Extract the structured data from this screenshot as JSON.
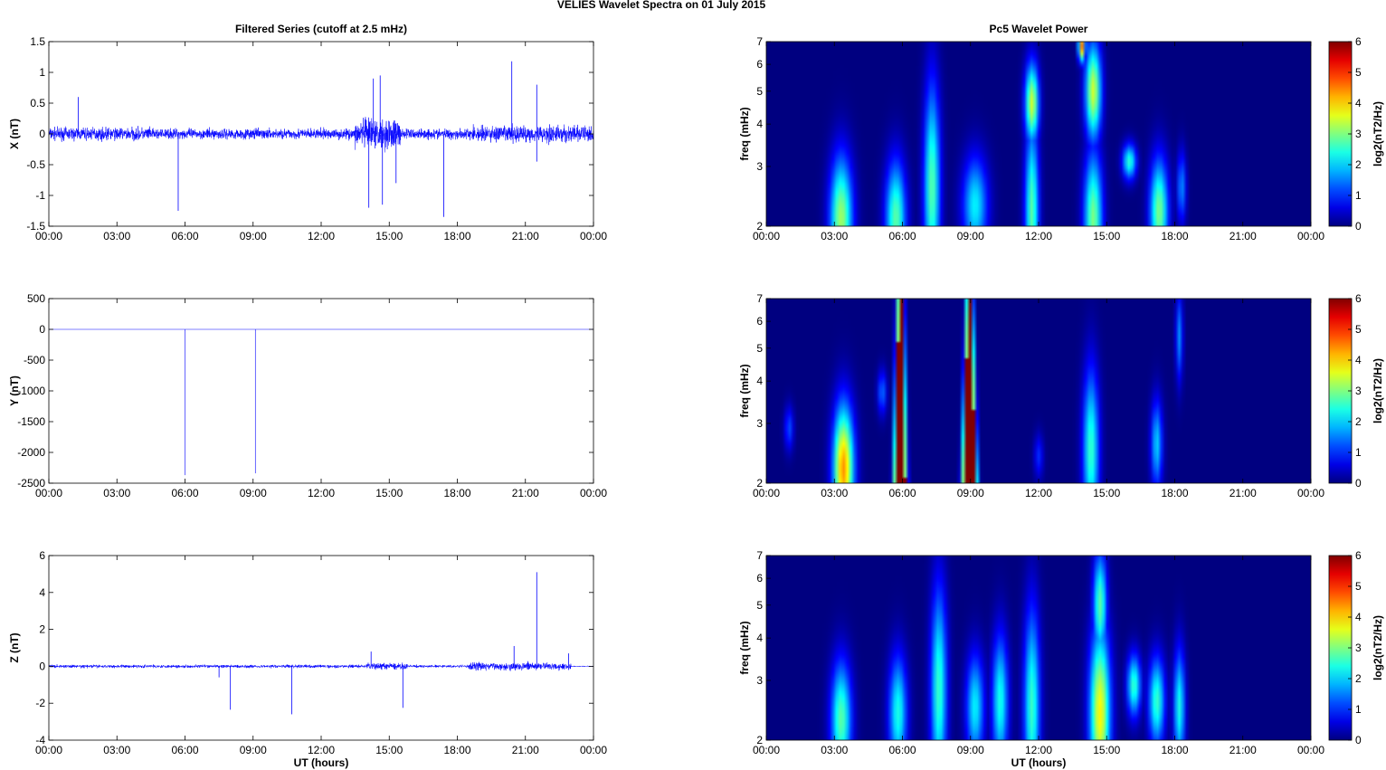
{
  "figure": {
    "suptitle": "VELIES Wavelet Spectra on 01 July      2015",
    "left_title": "Filtered Series (cutoff at 2.5 mHz)",
    "right_title": "Pc5 Wavelet Power",
    "xlabel": "UT (hours)"
  },
  "colors": {
    "trace": "#0000ff",
    "background": "#00008f",
    "colormap": "jet"
  },
  "chart_data": [
    {
      "type": "line",
      "panel": "X",
      "ylabel": "X (nT)",
      "xlim": [
        0,
        24
      ],
      "ylim": [
        -1.5,
        1.5
      ],
      "xticks": [
        "00:00",
        "03:00",
        "06:00",
        "09:00",
        "12:00",
        "15:00",
        "18:00",
        "21:00",
        "00:00"
      ],
      "yticks": [
        "-1.5",
        "-1",
        "-0.5",
        "0",
        "0.5",
        "1",
        "1.5"
      ],
      "noise_envelope": [
        {
          "from": 0,
          "to": 4.5,
          "amp": 0.15
        },
        {
          "from": 4.5,
          "to": 13.5,
          "amp": 0.12
        },
        {
          "from": 13.5,
          "to": 15.5,
          "amp": 0.35
        },
        {
          "from": 15.5,
          "to": 18.5,
          "amp": 0.12
        },
        {
          "from": 18.5,
          "to": 24,
          "amp": 0.2
        }
      ],
      "spikes": [
        {
          "x": 5.7,
          "y": -1.25
        },
        {
          "x": 1.3,
          "y": 0.6
        },
        {
          "x": 14.1,
          "y": -1.2
        },
        {
          "x": 14.3,
          "y": 0.9
        },
        {
          "x": 14.6,
          "y": 0.95
        },
        {
          "x": 14.7,
          "y": -1.15
        },
        {
          "x": 15.3,
          "y": -0.8
        },
        {
          "x": 17.4,
          "y": -1.35
        },
        {
          "x": 20.4,
          "y": 1.18
        },
        {
          "x": 21.5,
          "y": 0.8
        },
        {
          "x": 21.5,
          "y": -0.45
        }
      ]
    },
    {
      "type": "line",
      "panel": "Y",
      "ylabel": "Y (nT)",
      "xlim": [
        0,
        24
      ],
      "ylim": [
        -2500,
        500
      ],
      "xticks": [
        "00:00",
        "03:00",
        "06:00",
        "09:00",
        "12:00",
        "15:00",
        "18:00",
        "21:00",
        "00:00"
      ],
      "yticks": [
        "-2500",
        "-2000",
        "-1500",
        "-1000",
        "-500",
        "0",
        "500"
      ],
      "baseline": 0,
      "spikes": [
        {
          "x": 6.0,
          "y": -2370
        },
        {
          "x": 9.1,
          "y": -2340
        }
      ]
    },
    {
      "type": "line",
      "panel": "Z",
      "ylabel": "Z (nT)",
      "xlim": [
        0,
        24
      ],
      "ylim": [
        -4,
        6
      ],
      "xticks": [
        "00:00",
        "03:00",
        "06:00",
        "09:00",
        "12:00",
        "15:00",
        "18:00",
        "21:00",
        "00:00"
      ],
      "yticks": [
        "-4",
        "-2",
        "0",
        "2",
        "4",
        "6"
      ],
      "noise_envelope": [
        {
          "from": 0,
          "to": 14,
          "amp": 0.12
        },
        {
          "from": 14,
          "to": 15.8,
          "amp": 0.25
        },
        {
          "from": 15.8,
          "to": 18.5,
          "amp": 0.1
        },
        {
          "from": 18.5,
          "to": 23,
          "amp": 0.3
        },
        {
          "from": 23,
          "to": 24,
          "amp": 0.04
        }
      ],
      "spikes": [
        {
          "x": 8.0,
          "y": -2.35
        },
        {
          "x": 10.7,
          "y": -2.6
        },
        {
          "x": 15.6,
          "y": -2.25
        },
        {
          "x": 21.5,
          "y": 5.1
        },
        {
          "x": 20.5,
          "y": 1.1
        },
        {
          "x": 14.2,
          "y": 0.8
        },
        {
          "x": 7.5,
          "y": -0.6
        },
        {
          "x": 22.9,
          "y": 0.7
        }
      ]
    },
    {
      "type": "heatmap",
      "panel": "X-power",
      "ylabel": "freq (mHz)",
      "cbar_label": "log2(nT2/Hz)",
      "xlim": [
        0,
        24
      ],
      "ylim": [
        2,
        7
      ],
      "yscale": "log",
      "clim": [
        0,
        6
      ],
      "xticks": [
        "00:00",
        "03:00",
        "06:00",
        "09:00",
        "12:00",
        "15:00",
        "18:00",
        "21:00",
        "00:00"
      ],
      "yticks": [
        "2",
        "3",
        "4",
        "5",
        "6",
        "7"
      ],
      "cticks": [
        "0",
        "1",
        "2",
        "3",
        "4",
        "5",
        "6"
      ],
      "blobs": [
        {
          "t": 3.3,
          "f": 2.1,
          "v": 3.2,
          "w": 0.5,
          "h": 2.8
        },
        {
          "t": 5.7,
          "f": 2.1,
          "v": 2.8,
          "w": 0.45,
          "h": 2.6
        },
        {
          "t": 7.3,
          "f": 2.6,
          "v": 2.8,
          "w": 0.35,
          "h": 4.6
        },
        {
          "t": 9.2,
          "f": 2.3,
          "v": 2.2,
          "w": 0.55,
          "h": 2.2
        },
        {
          "t": 11.7,
          "f": 2.2,
          "v": 2.8,
          "w": 0.3,
          "h": 4.0
        },
        {
          "t": 11.7,
          "f": 4.6,
          "v": 3.5,
          "w": 0.3,
          "h": 1.8
        },
        {
          "t": 14.4,
          "f": 2.1,
          "v": 3.0,
          "w": 0.4,
          "h": 3.0
        },
        {
          "t": 14.4,
          "f": 5.0,
          "v": 3.5,
          "w": 0.35,
          "h": 2.2
        },
        {
          "t": 13.9,
          "f": 6.8,
          "v": 4.5,
          "w": 0.15,
          "h": 0.7
        },
        {
          "t": 16.0,
          "f": 3.1,
          "v": 2.5,
          "w": 0.3,
          "h": 0.8
        },
        {
          "t": 17.3,
          "f": 2.2,
          "v": 3.0,
          "w": 0.4,
          "h": 2.4
        },
        {
          "t": 18.3,
          "f": 2.6,
          "v": 1.6,
          "w": 0.2,
          "h": 1.6
        }
      ]
    },
    {
      "type": "heatmap",
      "panel": "Y-power",
      "ylabel": "freq (mHz)",
      "cbar_label": "log2(nT2/Hz)",
      "xlim": [
        0,
        24
      ],
      "ylim": [
        2,
        7
      ],
      "yscale": "log",
      "clim": [
        0,
        6
      ],
      "xticks": [
        "00:00",
        "03:00",
        "06:00",
        "09:00",
        "12:00",
        "15:00",
        "18:00",
        "21:00",
        "00:00"
      ],
      "yticks": [
        "2",
        "3",
        "4",
        "5",
        "6",
        "7"
      ],
      "cticks": [
        "0",
        "1",
        "2",
        "3",
        "4",
        "5",
        "6"
      ],
      "bands": [
        {
          "t": 5.9,
          "width_low": 0.45,
          "width_high": 0.12,
          "v": 6
        },
        {
          "t": 8.95,
          "width_low": 0.55,
          "width_high": 0.12,
          "v": 6
        }
      ],
      "blobs": [
        {
          "t": 3.4,
          "f": 2.2,
          "v": 4.4,
          "w": 0.45,
          "h": 2.8
        },
        {
          "t": 1.0,
          "f": 2.9,
          "v": 1.2,
          "w": 0.2,
          "h": 1.0
        },
        {
          "t": 5.1,
          "f": 3.7,
          "v": 1.4,
          "w": 0.2,
          "h": 1.0
        },
        {
          "t": 14.3,
          "f": 2.5,
          "v": 2.6,
          "w": 0.35,
          "h": 3.6
        },
        {
          "t": 17.2,
          "f": 2.6,
          "v": 2.0,
          "w": 0.25,
          "h": 2.0
        },
        {
          "t": 18.2,
          "f": 5.4,
          "v": 1.6,
          "w": 0.15,
          "h": 2.0
        },
        {
          "t": 12.0,
          "f": 2.4,
          "v": 1.0,
          "w": 0.2,
          "h": 1.0
        }
      ]
    },
    {
      "type": "heatmap",
      "panel": "Z-power",
      "ylabel": "freq (mHz)",
      "cbar_label": "log2(nT2/Hz)",
      "xlim": [
        0,
        24
      ],
      "ylim": [
        2,
        7
      ],
      "yscale": "log",
      "clim": [
        0,
        6
      ],
      "xticks": [
        "00:00",
        "03:00",
        "06:00",
        "09:00",
        "12:00",
        "15:00",
        "18:00",
        "21:00",
        "00:00"
      ],
      "yticks": [
        "2",
        "3",
        "4",
        "5",
        "6",
        "7"
      ],
      "cticks": [
        "0",
        "1",
        "2",
        "3",
        "4",
        "5",
        "6"
      ],
      "blobs": [
        {
          "t": 3.3,
          "f": 2.3,
          "v": 2.8,
          "w": 0.45,
          "h": 2.6
        },
        {
          "t": 5.8,
          "f": 2.4,
          "v": 2.4,
          "w": 0.4,
          "h": 2.6
        },
        {
          "t": 7.6,
          "f": 2.8,
          "v": 2.6,
          "w": 0.35,
          "h": 4.6
        },
        {
          "t": 9.2,
          "f": 2.5,
          "v": 2.2,
          "w": 0.4,
          "h": 2.4
        },
        {
          "t": 10.3,
          "f": 2.6,
          "v": 2.4,
          "w": 0.35,
          "h": 3.0
        },
        {
          "t": 11.7,
          "f": 2.5,
          "v": 2.6,
          "w": 0.35,
          "h": 4.4
        },
        {
          "t": 14.7,
          "f": 2.4,
          "v": 3.8,
          "w": 0.45,
          "h": 3.8
        },
        {
          "t": 14.7,
          "f": 5.0,
          "v": 2.8,
          "w": 0.3,
          "h": 2.4
        },
        {
          "t": 16.2,
          "f": 2.9,
          "v": 2.6,
          "w": 0.3,
          "h": 1.4
        },
        {
          "t": 17.2,
          "f": 2.6,
          "v": 2.6,
          "w": 0.35,
          "h": 2.0
        },
        {
          "t": 18.2,
          "f": 2.5,
          "v": 2.4,
          "w": 0.25,
          "h": 2.6
        }
      ]
    }
  ]
}
